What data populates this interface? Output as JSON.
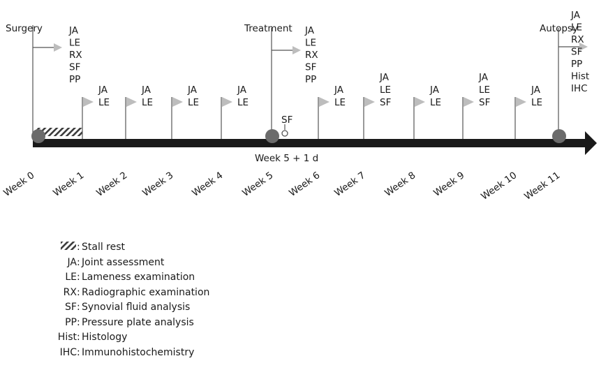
{
  "events": {
    "surgery": "Surgery",
    "treatment": "Treatment",
    "autopsy": "Autopsy",
    "treatment_sample": "SF",
    "treatment_day": "Week 5 + 1 d"
  },
  "tests": {
    "surgery": [
      "JA",
      "LE",
      "RX",
      "SF",
      "PP"
    ],
    "treatment": [
      "JA",
      "LE",
      "RX",
      "SF",
      "PP"
    ],
    "autopsy": [
      "JA",
      "LE",
      "RX",
      "SF",
      "PP",
      "Hist",
      "IHC"
    ]
  },
  "weekly_tests": [
    [
      "JA",
      "LE"
    ],
    [
      "JA",
      "LE"
    ],
    [
      "JA",
      "LE"
    ],
    [
      "JA",
      "LE"
    ],
    [
      "JA",
      "LE"
    ],
    [
      "JA",
      "LE",
      "SF"
    ],
    [
      "JA",
      "LE"
    ],
    [
      "JA",
      "LE",
      "SF"
    ],
    [
      "JA",
      "LE"
    ]
  ],
  "weeks": [
    "Week 0",
    "Week 1",
    "Week 2",
    "Week 3",
    "Week 4",
    "Week 5",
    "Week 6",
    "Week 7",
    "Week 8",
    "Week 9",
    "Week 10",
    "Week 11"
  ],
  "legend": {
    "stall_rest": "Stall rest",
    "items": [
      {
        "abbr": "JA",
        "desc": "Joint assessment"
      },
      {
        "abbr": "LE",
        "desc": "Lameness examination"
      },
      {
        "abbr": "RX",
        "desc": "Radiographic examination"
      },
      {
        "abbr": "SF",
        "desc": "Synovial fluid analysis"
      },
      {
        "abbr": "PP",
        "desc": "Pressure plate analysis"
      },
      {
        "abbr": "Hist",
        "desc": "Histology"
      },
      {
        "abbr": "IHC",
        "desc": "Immunohistochemistry"
      }
    ]
  },
  "colors": {
    "timeline_bar": "#1a1a1a",
    "event_circle": "#6b6b6b",
    "flag": "#bdbdbd",
    "line": "#555555",
    "text": "#1a1a1a"
  }
}
